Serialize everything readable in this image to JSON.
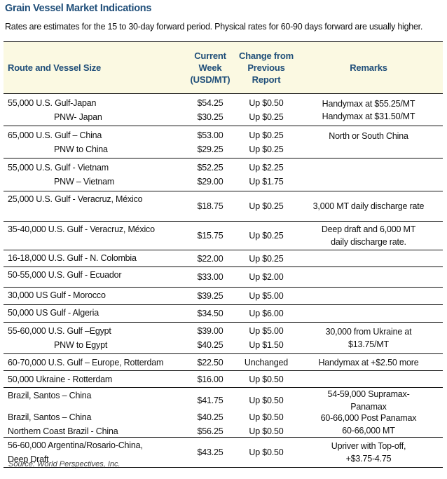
{
  "title": "Grain Vessel Market Indications",
  "subtitle": "Rates are estimates for the 15 to 30-day forward period. Physical rates for 60-90 days forward are usually higher.",
  "headers": [
    "Route and Vessel Size",
    "Current Week (USD/MT)",
    "Change from Previous Report",
    "Remarks"
  ],
  "groups": [
    {
      "rows": [
        {
          "h": 45,
          "mid": true,
          "route": [
            {
              "t": "55,000 U.S. Gulf-Japan"
            },
            {
              "t": "PNW- Japan",
              "indent": true
            }
          ],
          "price": [
            "$54.25",
            "$30.25"
          ],
          "change": [
            "Up $0.50",
            "Up $0.25"
          ],
          "remarks": [
            "Handymax at $55.25/MT",
            "Handymax at $31.50/MT"
          ]
        }
      ]
    },
    {
      "rows": [
        {
          "h": 45,
          "mid": true,
          "route": [
            {
              "t": "65,000 U.S. Gulf – China"
            },
            {
              "t": "PNW to China",
              "indent": true
            }
          ],
          "price": [
            "$53.00",
            "$29.25"
          ],
          "change": [
            "Up $0.25",
            "Up $0.25"
          ],
          "remarks": [
            "North or South China",
            ""
          ]
        }
      ]
    },
    {
      "rows": [
        {
          "h": 46,
          "mid": true,
          "route": [
            {
              "t": "55,000 U.S. Gulf - Vietnam"
            },
            {
              "t": "PNW – Vietnam",
              "indent": true
            }
          ],
          "price": [
            "$52.25",
            "$29.00"
          ],
          "change": [
            "Up $2.25",
            "Up $1.75"
          ],
          "remarks": []
        }
      ]
    },
    {
      "rows": [
        {
          "h": 42,
          "route": [
            {
              "t": "25,000 U.S. Gulf - Veracruz, México"
            }
          ],
          "price": [
            "$18.75"
          ],
          "change": [
            "Up $0.25"
          ],
          "remarks": [
            "3,000 MT daily discharge rate"
          ]
        }
      ]
    },
    {
      "rows": [
        {
          "h": 40,
          "route": [
            {
              "t": "35-40,000 U.S. Gulf - Veracruz, México"
            }
          ],
          "price": [
            "$15.75"
          ],
          "change": [
            "Up $0.25"
          ],
          "remarks": [
            "Deep draft and 6,000 MT",
            "daily discharge rate."
          ]
        }
      ]
    },
    {
      "rows": [
        {
          "h": 23,
          "route": [
            {
              "t": "16-18,000 U.S. Gulf - N. Colombia"
            }
          ],
          "price": [
            "$22.00"
          ],
          "change": [
            "Up $0.25"
          ],
          "remarks": []
        }
      ]
    },
    {
      "rows": [
        {
          "h": 28,
          "route": [
            {
              "t": "50-55,000 U.S. Gulf - Ecuador"
            }
          ],
          "price": [
            "$33.00"
          ],
          "change": [
            "Up $2.00"
          ],
          "remarks": []
        }
      ]
    },
    {
      "rows": [
        {
          "h": 24,
          "route": [
            {
              "t": "30,000 US Gulf - Morocco"
            }
          ],
          "price": [
            "$39.25"
          ],
          "change": [
            "Up $5.00"
          ],
          "remarks": []
        }
      ]
    },
    {
      "rows": [
        {
          "h": 24,
          "route": [
            {
              "t": "50,000 US Gulf - Algeria"
            }
          ],
          "price": [
            "$34.50"
          ],
          "change": [
            "Up $6.00"
          ],
          "remarks": []
        }
      ]
    },
    {
      "rows": [
        {
          "h": 44,
          "mid": true,
          "route": [
            {
              "t": "55-60,000 U.S. Gulf –Egypt"
            },
            {
              "t": "PNW to Egypt",
              "indent": true
            }
          ],
          "price": [
            "$39.00",
            "$40.25"
          ],
          "change": [
            "Up $5.00",
            "Up $1.50"
          ],
          "remarks": [
            "30,000 from Ukraine at",
            "$13.75/MT"
          ]
        }
      ]
    },
    {
      "rows": [
        {
          "h": 23,
          "mid": true,
          "route": [
            {
              "t": "60-70,000 U.S. Gulf – Europe, Rotterdam"
            }
          ],
          "price": [
            "$22.50"
          ],
          "change": [
            "Unchanged"
          ],
          "remarks": [
            "Handymax at +$2.50 more"
          ]
        }
      ]
    },
    {
      "rows": [
        {
          "h": 23,
          "mid": true,
          "route": [
            {
              "t": "50,000 Ukraine - Rotterdam"
            }
          ],
          "price": [
            "$16.00"
          ],
          "change": [
            "Up $0.50"
          ],
          "remarks": []
        }
      ]
    },
    {
      "rows": [
        {
          "h": 32,
          "route": [
            {
              "t": "Brazil, Santos – China"
            }
          ],
          "price": [
            "$41.75"
          ],
          "change": [
            "Up $0.50"
          ],
          "remarks": [
            "54-59,000 Supramax-",
            "Panamax"
          ]
        },
        {
          "h": 38,
          "mid": true,
          "route": [
            {
              "t": "Brazil, Santos – China"
            },
            {
              "t": "Northern Coast Brazil - China"
            }
          ],
          "price": [
            "$40.25",
            "$56.25"
          ],
          "change": [
            "Up $0.50",
            "Up $0.50"
          ],
          "remarks": [
            "60-66,000 Post Panamax",
            "60-66,000 MT"
          ]
        }
      ]
    },
    {
      "rows": [
        {
          "h": 42,
          "mid": true,
          "route": [
            {
              "t": "56-60,000 Argentina/Rosario-China,"
            },
            {
              "t": "Deep Draft"
            }
          ],
          "price": [
            "$43.25"
          ],
          "change": [
            "Up $0.50"
          ],
          "remarks": [
            "Upriver with Top-off,",
            "+$3.75-4.75"
          ]
        }
      ]
    }
  ],
  "source": "Source: World Perspectives, Inc."
}
